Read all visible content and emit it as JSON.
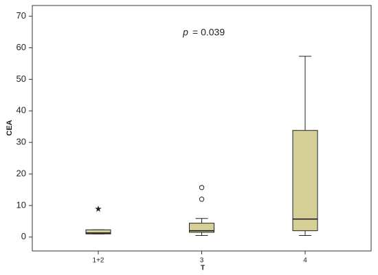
{
  "chart_data": {
    "type": "box",
    "annotation_symbol": "p",
    "annotation_text": "= 0.039",
    "ylabel": "CEA",
    "xlabel": "T",
    "categories": [
      "1+2",
      "3",
      "4"
    ],
    "color": "#d6cf98",
    "boxes": [
      {
        "whisker_low": 1.0,
        "q1": 1.0,
        "median": 1.3,
        "q3": 2.3,
        "whisker_high": 2.3,
        "outliers": [
          8.9
        ],
        "outlier_marker": "star"
      },
      {
        "whisker_low": 0.5,
        "q1": 1.5,
        "median": 2.0,
        "q3": 4.4,
        "whisker_high": 5.9,
        "outliers": [
          15.7,
          12.0
        ],
        "outlier_marker": "circle"
      },
      {
        "whisker_low": 0.5,
        "q1": 2.0,
        "median": 5.7,
        "q3": 33.8,
        "whisker_high": 57.3,
        "outliers": [],
        "outlier_marker": "circle"
      }
    ],
    "ylim": [
      -4.4,
      73.4
    ],
    "yticks": [
      0,
      10,
      20,
      30,
      40,
      50,
      60,
      70
    ]
  }
}
